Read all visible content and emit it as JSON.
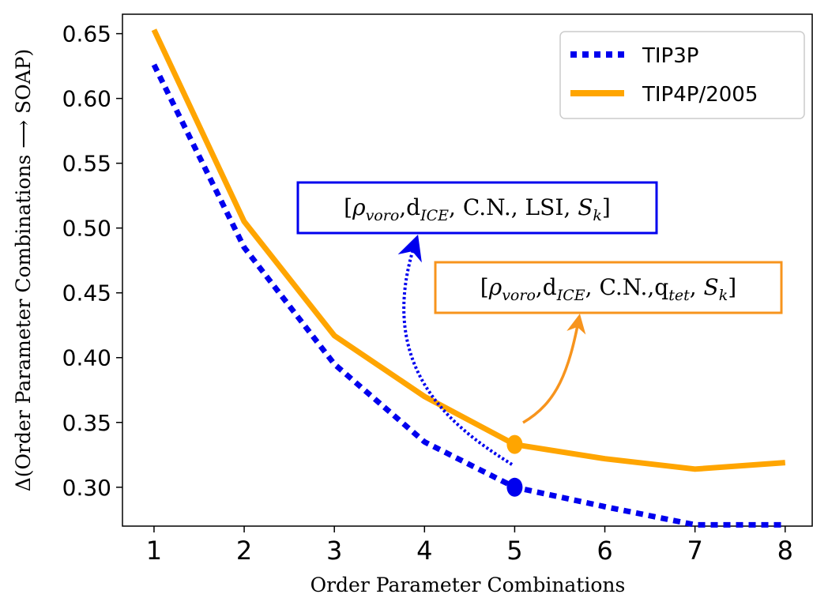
{
  "chart_data": {
    "type": "line",
    "xlabel": "Order Parameter Combinations",
    "ylabel": "Δ(Order Parameter Combinations ⟶ SOAP)",
    "x": [
      1,
      2,
      3,
      4,
      5,
      6,
      7,
      8
    ],
    "xlim": [
      0.65,
      8.3
    ],
    "ylim": [
      0.27,
      0.665
    ],
    "x_ticks": [
      "1",
      "2",
      "3",
      "4",
      "5",
      "6",
      "7",
      "8"
    ],
    "y_ticks": [
      "0.30",
      "0.35",
      "0.40",
      "0.45",
      "0.50",
      "0.55",
      "0.60",
      "0.65"
    ],
    "grid": false,
    "legend_position": "top-right",
    "series": [
      {
        "name": "TIP3P",
        "color": "#0000ee",
        "style": "dotted",
        "values": [
          0.626,
          0.485,
          0.395,
          0.335,
          0.3,
          0.285,
          0.271,
          0.271
        ]
      },
      {
        "name": "TIP4P/2005",
        "color": "#ffa500",
        "style": "solid",
        "values": [
          0.653,
          0.505,
          0.417,
          0.37,
          0.333,
          0.322,
          0.314,
          0.319
        ]
      }
    ],
    "highlight_points": [
      {
        "series": "TIP3P",
        "x": 5,
        "y": 0.3
      },
      {
        "series": "TIP4P/2005",
        "x": 5,
        "y": 0.333
      }
    ],
    "annotations": [
      {
        "series": "TIP3P",
        "box_color": "#0000ee",
        "parts": [
          "[",
          "ρ",
          "voro",
          ",d",
          "ICE",
          ", C.N., LSI, ",
          "S",
          "k",
          "]"
        ]
      },
      {
        "series": "TIP4P/2005",
        "box_color": "#f7941d",
        "parts": [
          "[",
          "ρ",
          "voro",
          ",d",
          "ICE",
          ", C.N.,q",
          "tet",
          ", ",
          "S",
          "k",
          "]"
        ]
      }
    ]
  }
}
